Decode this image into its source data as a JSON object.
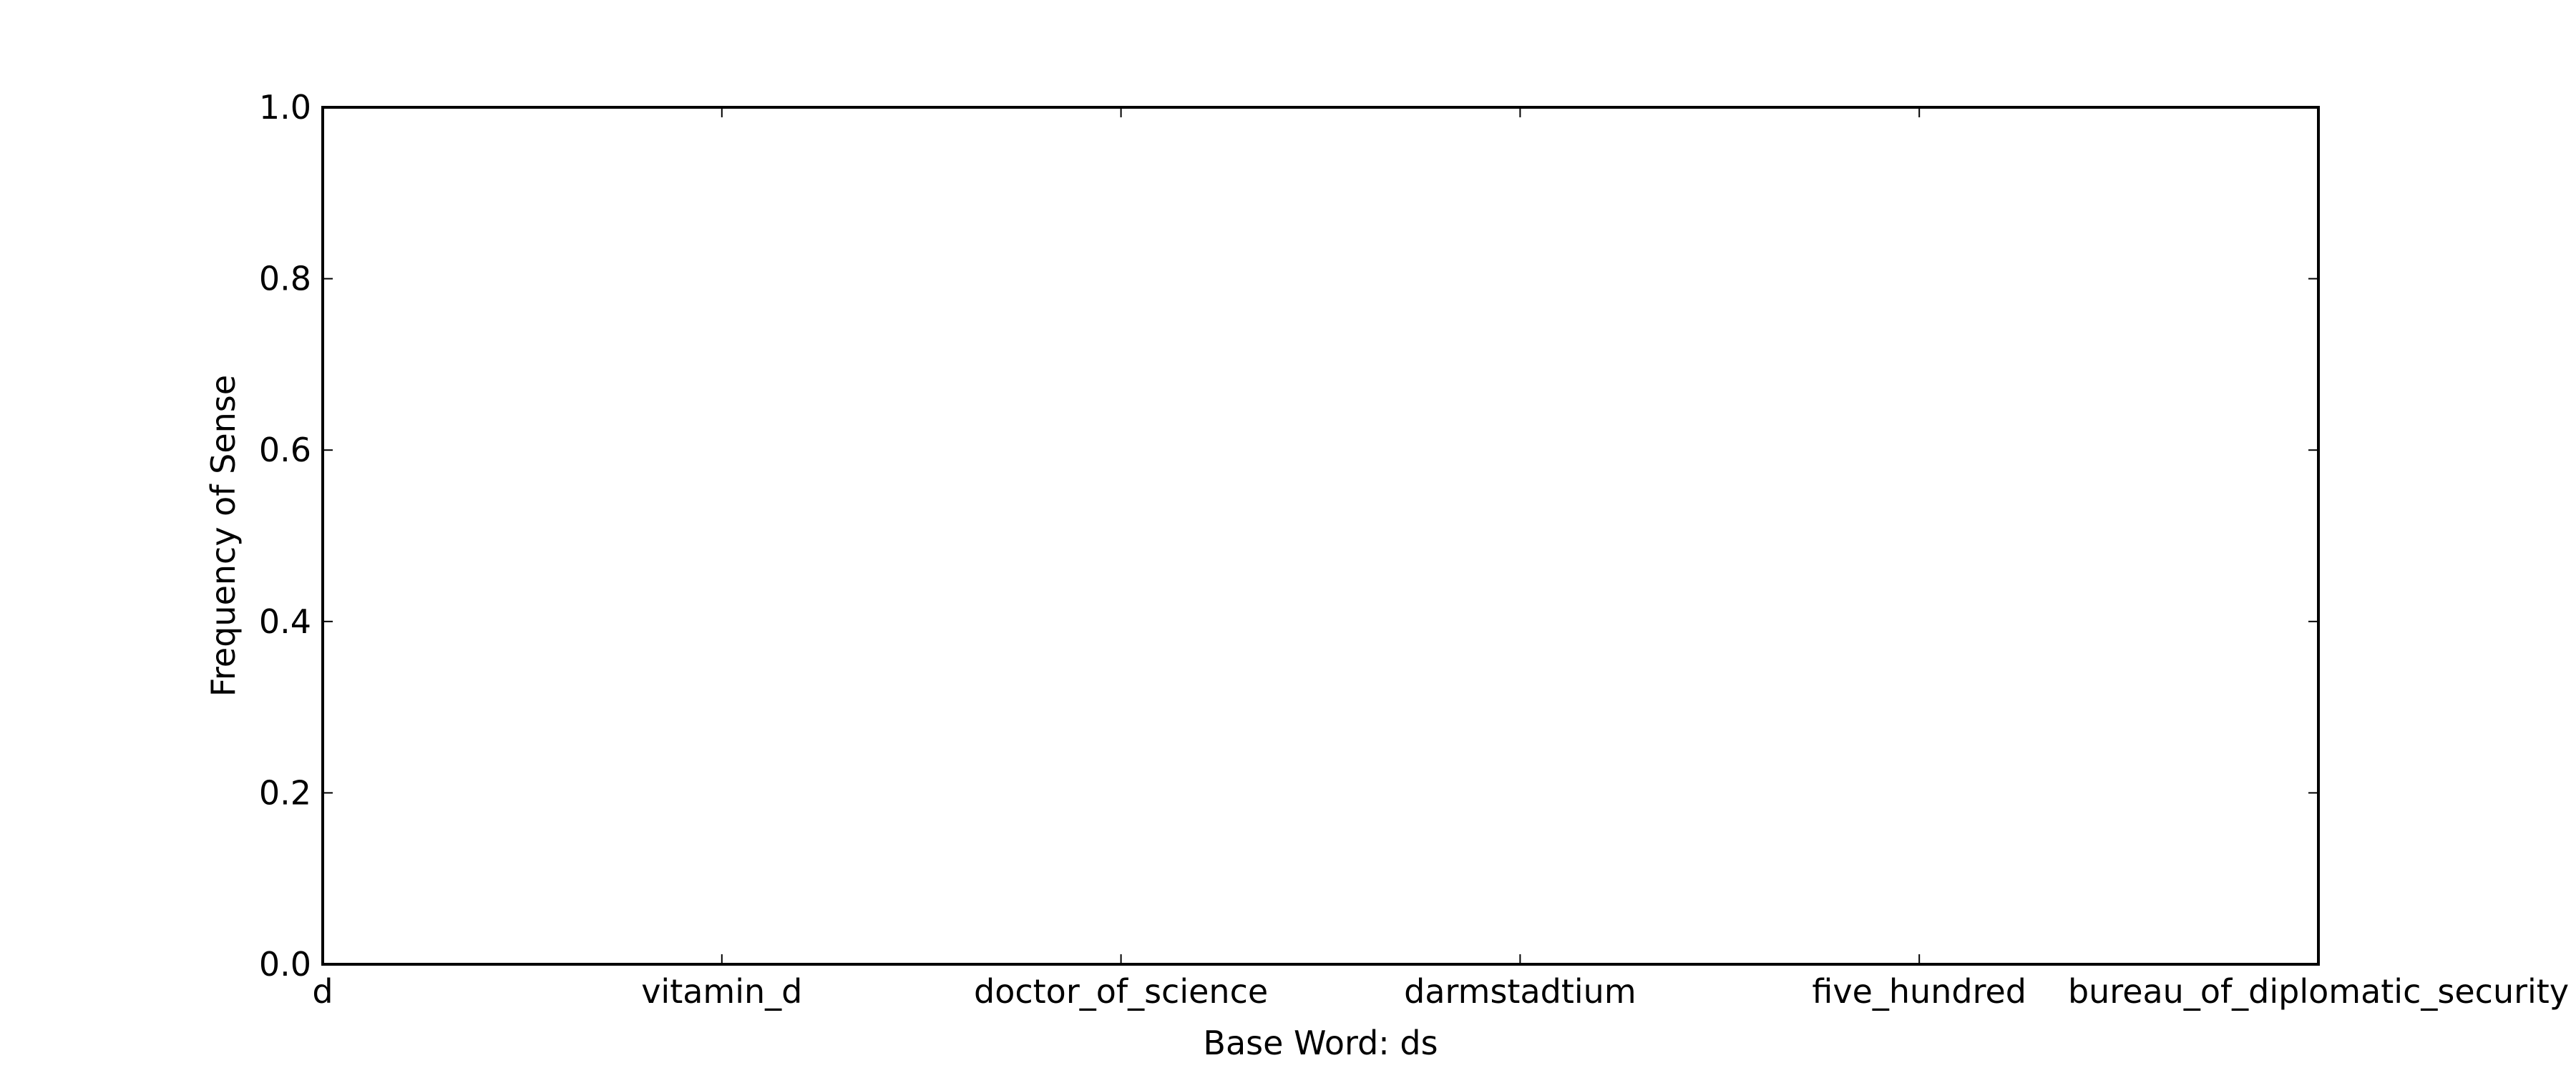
{
  "chart_data": {
    "type": "bar",
    "title": "",
    "xlabel": "Base Word: ds",
    "ylabel": "Frequency of Sense",
    "categories": [
      "d",
      "vitamin_d",
      "doctor_of_science",
      "darmstadtium",
      "five_hundred",
      "bureau_of_diplomatic_security"
    ],
    "values": [
      0,
      0,
      0,
      0,
      0,
      0
    ],
    "ylim": [
      0,
      1.0
    ],
    "yticks": [
      "0.0",
      "0.2",
      "0.4",
      "0.6",
      "0.8",
      "1.0"
    ],
    "grid": false,
    "legend": "none",
    "colors": {
      "axis": "#000000",
      "background": "#ffffff",
      "bar": "#0000ff"
    }
  }
}
